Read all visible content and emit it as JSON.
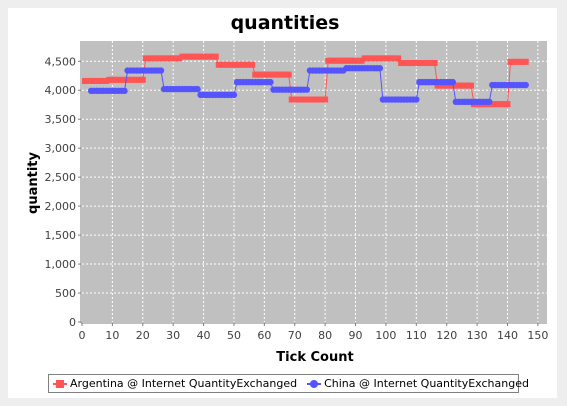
{
  "chart_data": {
    "type": "line",
    "title": "quantities",
    "xlabel": "Tick Count",
    "ylabel": "quantity",
    "xlim": [
      0,
      153
    ],
    "ylim": [
      0,
      4850
    ],
    "x_ticks": [
      0,
      10,
      20,
      30,
      40,
      50,
      60,
      70,
      80,
      90,
      100,
      110,
      120,
      130,
      140,
      150
    ],
    "y_ticks": [
      0,
      500,
      1000,
      1500,
      2000,
      2500,
      3000,
      3500,
      4000,
      4500
    ],
    "y_tick_labels": [
      "0",
      "500",
      "1,000",
      "1,500",
      "2,000",
      "2,500",
      "3,000",
      "3,500",
      "4,000",
      "4,500"
    ],
    "grid": true,
    "legend_position": "bottom",
    "series": [
      {
        "name": "Argentina @ Internet QuantityExchanged",
        "color": "#ff5555",
        "marker": "square",
        "segments": [
          {
            "x": [
              1,
              8
            ],
            "y": 4160
          },
          {
            "x": [
              9,
              20
            ],
            "y": 4180
          },
          {
            "x": [
              21,
              32
            ],
            "y": 4550
          },
          {
            "x": [
              33,
              44
            ],
            "y": 4580
          },
          {
            "x": [
              45,
              56
            ],
            "y": 4440
          },
          {
            "x": [
              57,
              68
            ],
            "y": 4270
          },
          {
            "x": [
              69,
              80
            ],
            "y": 3840
          },
          {
            "x": [
              81,
              92
            ],
            "y": 4510
          },
          {
            "x": [
              93,
              104
            ],
            "y": 4550
          },
          {
            "x": [
              105,
              116
            ],
            "y": 4470
          },
          {
            "x": [
              117,
              128
            ],
            "y": 4080
          },
          {
            "x": [
              129,
              140
            ],
            "y": 3760
          },
          {
            "x": [
              141,
              146
            ],
            "y": 4490
          }
        ]
      },
      {
        "name": "China @ Internet QuantityExchanged",
        "color": "#5555ff",
        "marker": "circle",
        "segments": [
          {
            "x": [
              3,
              14
            ],
            "y": 3990
          },
          {
            "x": [
              15,
              26
            ],
            "y": 4340
          },
          {
            "x": [
              27,
              38
            ],
            "y": 4020
          },
          {
            "x": [
              39,
              50
            ],
            "y": 3920
          },
          {
            "x": [
              51,
              62
            ],
            "y": 4140
          },
          {
            "x": [
              63,
              74
            ],
            "y": 4010
          },
          {
            "x": [
              75,
              86
            ],
            "y": 4340
          },
          {
            "x": [
              87,
              98
            ],
            "y": 4380
          },
          {
            "x": [
              99,
              110
            ],
            "y": 3840
          },
          {
            "x": [
              111,
              122
            ],
            "y": 4140
          },
          {
            "x": [
              123,
              134
            ],
            "y": 3800
          },
          {
            "x": [
              135,
              146
            ],
            "y": 4090
          }
        ]
      }
    ]
  }
}
